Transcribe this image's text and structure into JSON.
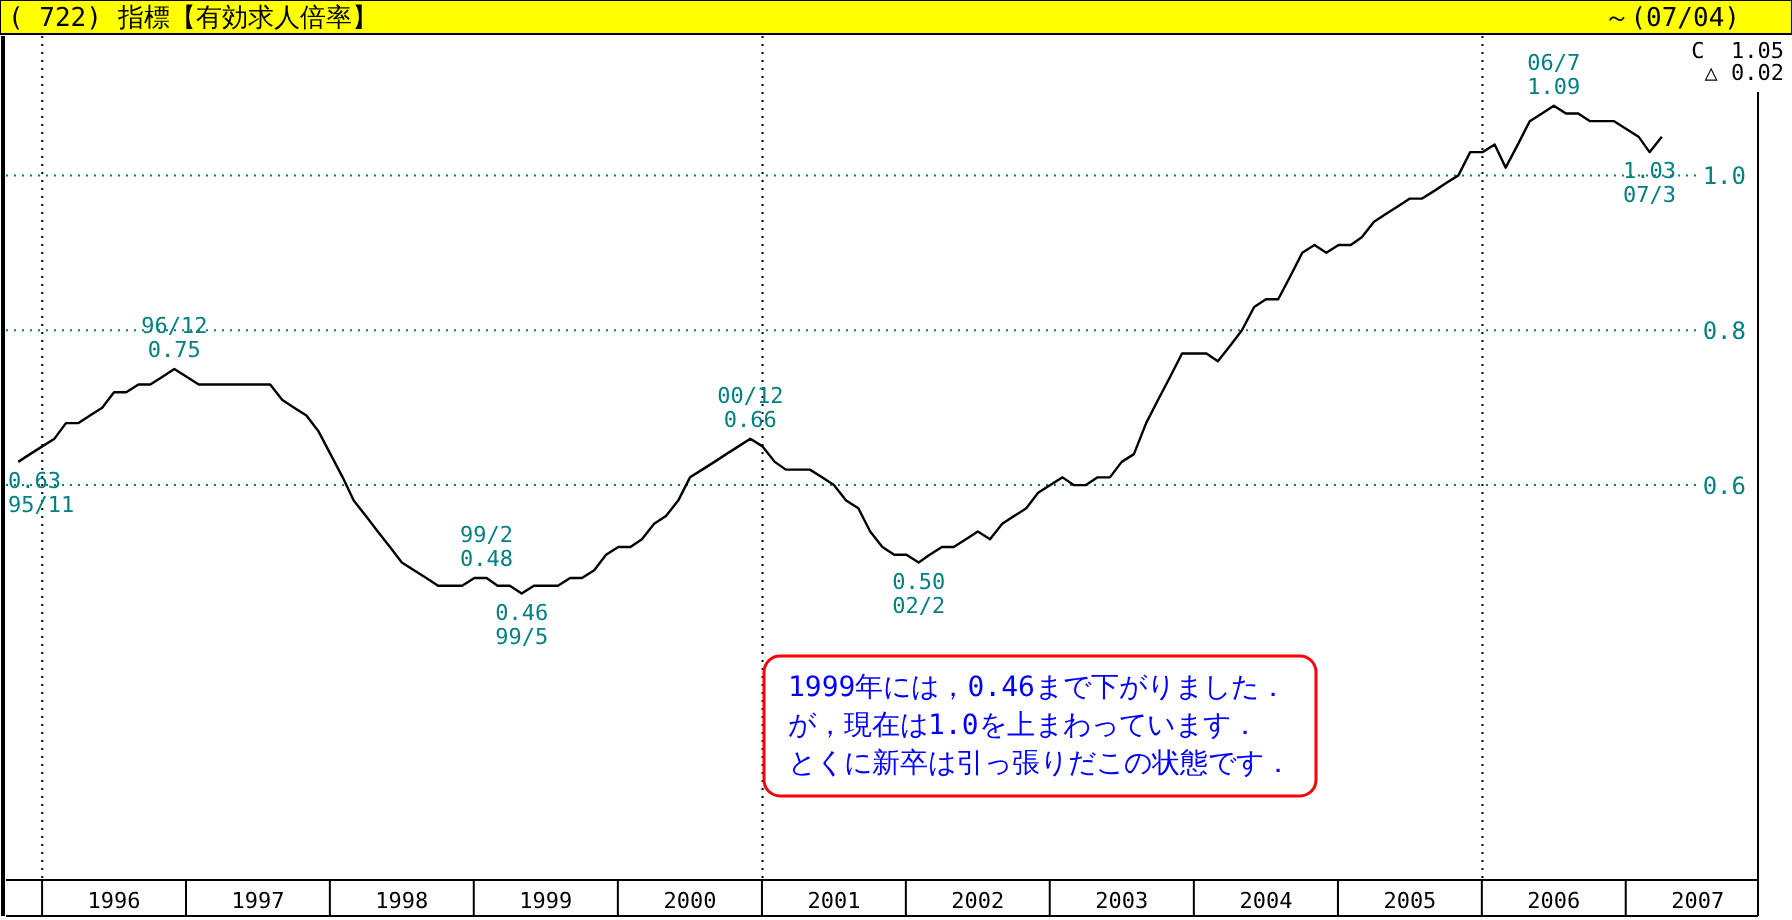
{
  "chart_data": {
    "type": "line",
    "title": "( 722) 指標【有効求人倍率】",
    "subtitle": "～(07/04)",
    "x": [
      "1995-11",
      "1995-12",
      "1996-01",
      "1996-02",
      "1996-03",
      "1996-04",
      "1996-05",
      "1996-06",
      "1996-07",
      "1996-08",
      "1996-09",
      "1996-10",
      "1996-11",
      "1996-12",
      "1997-01",
      "1997-02",
      "1997-03",
      "1997-04",
      "1997-05",
      "1997-06",
      "1997-07",
      "1997-08",
      "1997-09",
      "1997-10",
      "1997-11",
      "1997-12",
      "1998-01",
      "1998-02",
      "1998-03",
      "1998-04",
      "1998-05",
      "1998-06",
      "1998-07",
      "1998-08",
      "1998-09",
      "1998-10",
      "1998-11",
      "1998-12",
      "1999-01",
      "1999-02",
      "1999-03",
      "1999-04",
      "1999-05",
      "1999-06",
      "1999-07",
      "1999-08",
      "1999-09",
      "1999-10",
      "1999-11",
      "1999-12",
      "2000-01",
      "2000-02",
      "2000-03",
      "2000-04",
      "2000-05",
      "2000-06",
      "2000-07",
      "2000-08",
      "2000-09",
      "2000-10",
      "2000-11",
      "2000-12",
      "2001-01",
      "2001-02",
      "2001-03",
      "2001-04",
      "2001-05",
      "2001-06",
      "2001-07",
      "2001-08",
      "2001-09",
      "2001-10",
      "2001-11",
      "2001-12",
      "2002-01",
      "2002-02",
      "2002-03",
      "2002-04",
      "2002-05",
      "2002-06",
      "2002-07",
      "2002-08",
      "2002-09",
      "2002-10",
      "2002-11",
      "2002-12",
      "2003-01",
      "2003-02",
      "2003-03",
      "2003-04",
      "2003-05",
      "2003-06",
      "2003-07",
      "2003-08",
      "2003-09",
      "2003-10",
      "2003-11",
      "2003-12",
      "2004-01",
      "2004-02",
      "2004-03",
      "2004-04",
      "2004-05",
      "2004-06",
      "2004-07",
      "2004-08",
      "2004-09",
      "2004-10",
      "2004-11",
      "2004-12",
      "2005-01",
      "2005-02",
      "2005-03",
      "2005-04",
      "2005-05",
      "2005-06",
      "2005-07",
      "2005-08",
      "2005-09",
      "2005-10",
      "2005-11",
      "2005-12",
      "2006-01",
      "2006-02",
      "2006-03",
      "2006-04",
      "2006-05",
      "2006-06",
      "2006-07",
      "2006-08",
      "2006-09",
      "2006-10",
      "2006-11",
      "2006-12",
      "2007-01",
      "2007-02",
      "2007-03",
      "2007-04"
    ],
    "series": [
      {
        "color": "#000000",
        "values": [
          0.63,
          0.64,
          0.65,
          0.66,
          0.68,
          0.68,
          0.69,
          0.7,
          0.72,
          0.72,
          0.73,
          0.73,
          0.74,
          0.75,
          0.74,
          0.73,
          0.73,
          0.73,
          0.73,
          0.73,
          0.73,
          0.73,
          0.71,
          0.7,
          0.69,
          0.67,
          0.64,
          0.61,
          0.58,
          0.56,
          0.54,
          0.52,
          0.5,
          0.49,
          0.48,
          0.47,
          0.47,
          0.47,
          0.48,
          0.48,
          0.47,
          0.47,
          0.46,
          0.47,
          0.47,
          0.47,
          0.48,
          0.48,
          0.49,
          0.51,
          0.52,
          0.52,
          0.53,
          0.55,
          0.56,
          0.58,
          0.61,
          0.62,
          0.63,
          0.64,
          0.65,
          0.66,
          0.65,
          0.63,
          0.62,
          0.62,
          0.62,
          0.61,
          0.6,
          0.58,
          0.57,
          0.54,
          0.52,
          0.51,
          0.51,
          0.5,
          0.51,
          0.52,
          0.52,
          0.53,
          0.54,
          0.53,
          0.55,
          0.56,
          0.57,
          0.59,
          0.6,
          0.61,
          0.6,
          0.6,
          0.61,
          0.61,
          0.63,
          0.64,
          0.68,
          0.71,
          0.74,
          0.77,
          0.77,
          0.77,
          0.76,
          0.78,
          0.8,
          0.83,
          0.84,
          0.84,
          0.87,
          0.9,
          0.91,
          0.9,
          0.91,
          0.91,
          0.92,
          0.94,
          0.95,
          0.96,
          0.97,
          0.97,
          0.98,
          0.99,
          1.0,
          1.03,
          1.03,
          1.04,
          1.01,
          1.04,
          1.07,
          1.08,
          1.09,
          1.08,
          1.08,
          1.07,
          1.07,
          1.07,
          1.06,
          1.05,
          1.03,
          1.05
        ]
      }
    ],
    "xlim": [
      "1995-10",
      "2007-12"
    ],
    "xticks": [
      {
        "value": "1996-07",
        "label": "1996"
      },
      {
        "value": "1997-07",
        "label": "1997"
      },
      {
        "value": "1998-07",
        "label": "1998"
      },
      {
        "value": "1999-07",
        "label": "1999"
      },
      {
        "value": "2000-07",
        "label": "2000"
      },
      {
        "value": "2001-07",
        "label": "2001"
      },
      {
        "value": "2002-07",
        "label": "2002"
      },
      {
        "value": "2003-07",
        "label": "2003"
      },
      {
        "value": "2004-07",
        "label": "2004"
      },
      {
        "value": "2005-07",
        "label": "2005"
      },
      {
        "value": "2006-07",
        "label": "2006"
      },
      {
        "value": "2007-07",
        "label": "2007"
      }
    ],
    "ylim": [
      0.09,
      1.18
    ],
    "yticks": [
      0.6,
      0.8,
      {
        "value": 1,
        "label": "1.0"
      }
    ],
    "grid": "y",
    "ref_lines": [
      {
        "axis": "x",
        "value": "1996-01",
        "color": "#000000",
        "line_style": "dotted"
      },
      {
        "axis": "x",
        "value": "2001-01",
        "color": "#000000",
        "line_style": "dotted"
      },
      {
        "axis": "x",
        "value": "2006-01",
        "color": "#000000",
        "line_style": "dotted"
      }
    ],
    "annotations": [
      {
        "text": "0.63\n95/11",
        "x": "1995-11",
        "y": 0.63
      },
      {
        "text": "96/12\n0.75",
        "x": "1996-12",
        "y": 0.75
      },
      {
        "text": "99/2\n0.48",
        "x": "1999-02",
        "y": 0.48
      },
      {
        "text": "0.46\n99/5",
        "x": "1999-05",
        "y": 0.46
      },
      {
        "text": "00/12\n0.66",
        "x": "2000-12",
        "y": 0.66
      },
      {
        "text": "0.50\n02/2",
        "x": "2002-02",
        "y": 0.5
      },
      {
        "text": "06/7\n1.09",
        "x": "2006-07",
        "y": 1.09
      },
      {
        "text": "1.03\n07/3",
        "x": "2007-03",
        "y": 1.03
      },
      "C  1.05\n△ 0.02",
      "1999年には，0.46まで下がりました．",
      "が，現在は1.0を上まわっています．",
      "とくに新卒は引っ張りだこの状態です．"
    ]
  }
}
